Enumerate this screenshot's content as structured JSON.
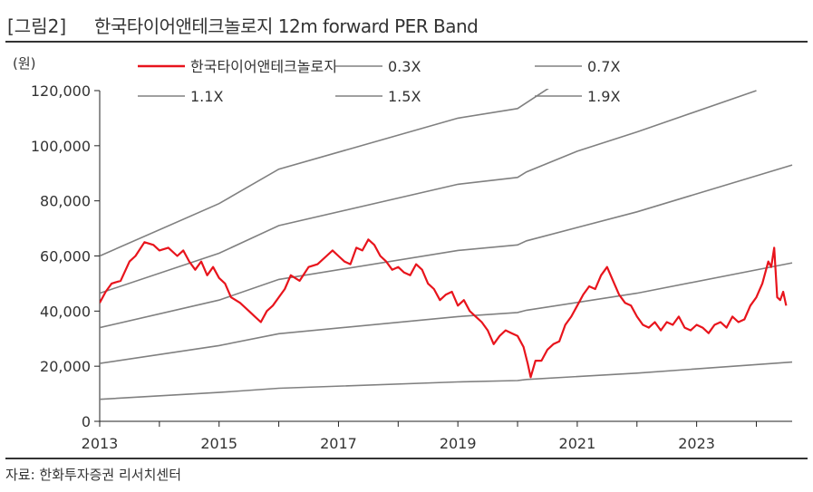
{
  "header": {
    "figure_label": "[그림2]",
    "title": "한국타이어앤테크놀로지 12m forward PER Band"
  },
  "source": "자료: 한화투자증권 리서치센터",
  "chart_data": {
    "type": "line",
    "title": "한국타이어앤테크놀로지 12m forward PER Band",
    "unit": "(원)",
    "xlabel": "",
    "ylabel": "(원)",
    "xlim": [
      2013.0,
      2024.6
    ],
    "ylim": [
      0,
      120000
    ],
    "y_ticks": [
      0,
      20000,
      40000,
      60000,
      80000,
      100000,
      120000
    ],
    "y_tick_labels": [
      "0",
      "20,000",
      "40,000",
      "60,000",
      "80,000",
      "100,000",
      "120,000"
    ],
    "x_ticks": [
      2013,
      2015,
      2017,
      2019,
      2021,
      2023
    ],
    "x_tick_labels": [
      "2013",
      "2015",
      "2017",
      "2019",
      "2021",
      "2023"
    ],
    "legend_position": "top",
    "colors": {
      "price": "#e8141c",
      "band": "#808080",
      "axis": "#222222"
    },
    "bands": [
      {
        "name": "0.3X",
        "x": [
          2013.0,
          2015.0,
          2016.0,
          2019.0,
          2020.0,
          2020.15,
          2022.0,
          2024.6
        ],
        "values": [
          8000,
          10500,
          12000,
          14300,
          14800,
          15200,
          17500,
          21500
        ]
      },
      {
        "name": "0.7X",
        "x": [
          2013.0,
          2015.0,
          2016.0,
          2019.0,
          2020.0,
          2020.15,
          2022.0,
          2024.6
        ],
        "values": [
          21000,
          27500,
          31800,
          38000,
          39500,
          40300,
          46500,
          57500
        ]
      },
      {
        "name": "1.1X",
        "x": [
          2013.0,
          2015.0,
          2016.0,
          2019.0,
          2020.0,
          2020.15,
          2022.0,
          2024.6
        ],
        "values": [
          34000,
          44000,
          51500,
          62000,
          64000,
          65500,
          76000,
          93000
        ]
      },
      {
        "name": "1.5X",
        "x": [
          2013.0,
          2015.0,
          2016.0,
          2019.0,
          2020.0,
          2020.15,
          2021.0,
          2022.0,
          2024.0
        ],
        "values": [
          46500,
          61000,
          71000,
          86000,
          88500,
          90500,
          98000,
          105000,
          120000
        ]
      },
      {
        "name": "1.9X",
        "x": [
          2013.0,
          2015.0,
          2016.0,
          2019.0,
          2020.0,
          2020.6
        ],
        "values": [
          60000,
          79000,
          91500,
          110000,
          113500,
          122000
        ]
      }
    ],
    "series": [
      {
        "name": "한국타이어앤테크놀로지",
        "x": [
          2013.0,
          2013.1,
          2013.2,
          2013.35,
          2013.5,
          2013.6,
          2013.75,
          2013.9,
          2014.0,
          2014.15,
          2014.3,
          2014.4,
          2014.5,
          2014.6,
          2014.7,
          2014.8,
          2014.9,
          2015.0,
          2015.1,
          2015.2,
          2015.35,
          2015.5,
          2015.6,
          2015.7,
          2015.8,
          2015.9,
          2016.0,
          2016.1,
          2016.2,
          2016.35,
          2016.5,
          2016.65,
          2016.8,
          2016.9,
          2017.0,
          2017.1,
          2017.2,
          2017.3,
          2017.4,
          2017.5,
          2017.6,
          2017.7,
          2017.8,
          2017.9,
          2018.0,
          2018.1,
          2018.2,
          2018.3,
          2018.4,
          2018.5,
          2018.6,
          2018.7,
          2018.8,
          2018.9,
          2019.0,
          2019.1,
          2019.2,
          2019.3,
          2019.4,
          2019.5,
          2019.6,
          2019.7,
          2019.8,
          2019.9,
          2020.0,
          2020.1,
          2020.17,
          2020.22,
          2020.3,
          2020.4,
          2020.5,
          2020.6,
          2020.7,
          2020.8,
          2020.9,
          2021.0,
          2021.1,
          2021.2,
          2021.3,
          2021.4,
          2021.5,
          2021.6,
          2021.7,
          2021.8,
          2021.9,
          2022.0,
          2022.1,
          2022.2,
          2022.3,
          2022.4,
          2022.5,
          2022.6,
          2022.7,
          2022.8,
          2022.9,
          2023.0,
          2023.1,
          2023.2,
          2023.3,
          2023.4,
          2023.5,
          2023.6,
          2023.7,
          2023.8,
          2023.9,
          2024.0,
          2024.1,
          2024.2,
          2024.25,
          2024.3,
          2024.35,
          2024.4,
          2024.45,
          2024.5
        ],
        "values": [
          43000,
          47000,
          50000,
          51000,
          58000,
          60000,
          65000,
          64000,
          62000,
          63000,
          60000,
          62000,
          58000,
          55000,
          58000,
          53000,
          56000,
          52000,
          50000,
          45000,
          43000,
          40000,
          38000,
          36000,
          40000,
          42000,
          45000,
          48000,
          53000,
          51000,
          56000,
          57000,
          60000,
          62000,
          60000,
          58000,
          57000,
          63000,
          62000,
          66000,
          64000,
          60000,
          58000,
          55000,
          56000,
          54000,
          53000,
          57000,
          55000,
          50000,
          48000,
          44000,
          46000,
          47000,
          42000,
          44000,
          40000,
          38000,
          36000,
          33000,
          28000,
          31000,
          33000,
          32000,
          31000,
          27000,
          21000,
          16000,
          22000,
          22000,
          26000,
          28000,
          29000,
          35000,
          38000,
          42000,
          46000,
          49000,
          48000,
          53000,
          56000,
          51000,
          46000,
          43000,
          42000,
          38000,
          35000,
          34000,
          36000,
          33000,
          36000,
          35000,
          38000,
          34000,
          33000,
          35000,
          34000,
          32000,
          35000,
          36000,
          34000,
          38000,
          36000,
          37000,
          42000,
          45000,
          50000,
          58000,
          56000,
          63000,
          45000,
          44000,
          47000,
          42000
        ]
      }
    ]
  }
}
